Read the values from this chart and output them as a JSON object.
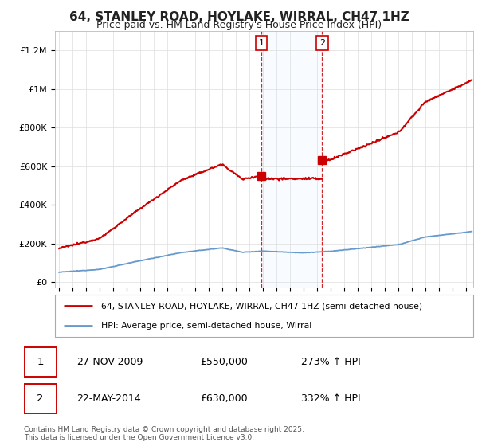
{
  "title": "64, STANLEY ROAD, HOYLAKE, WIRRAL, CH47 1HZ",
  "subtitle": "Price paid vs. HM Land Registry's House Price Index (HPI)",
  "ylabel_ticks": [
    "£0",
    "£200K",
    "£400K",
    "£600K",
    "£800K",
    "£1M",
    "£1.2M"
  ],
  "ytick_vals": [
    0,
    200000,
    400000,
    600000,
    800000,
    1000000,
    1200000
  ],
  "ylim": [
    -30000,
    1300000
  ],
  "xlim_start": 1994.7,
  "xlim_end": 2025.5,
  "background_color": "#ffffff",
  "grid_color": "#dddddd",
  "red_line_color": "#cc0000",
  "blue_line_color": "#6699cc",
  "sale1_date": 2009.9,
  "sale1_price": 550000,
  "sale2_date": 2014.38,
  "sale2_price": 630000,
  "shade_color": "#ddeeff",
  "legend_label_red": "64, STANLEY ROAD, HOYLAKE, WIRRAL, CH47 1HZ (semi-detached house)",
  "legend_label_blue": "HPI: Average price, semi-detached house, Wirral",
  "annotation1_date": "27-NOV-2009",
  "annotation1_price": "£550,000",
  "annotation1_hpi": "273% ↑ HPI",
  "annotation2_date": "22-MAY-2014",
  "annotation2_price": "£630,000",
  "annotation2_hpi": "332% ↑ HPI",
  "footer": "Contains HM Land Registry data © Crown copyright and database right 2025.\nThis data is licensed under the Open Government Licence v3.0."
}
